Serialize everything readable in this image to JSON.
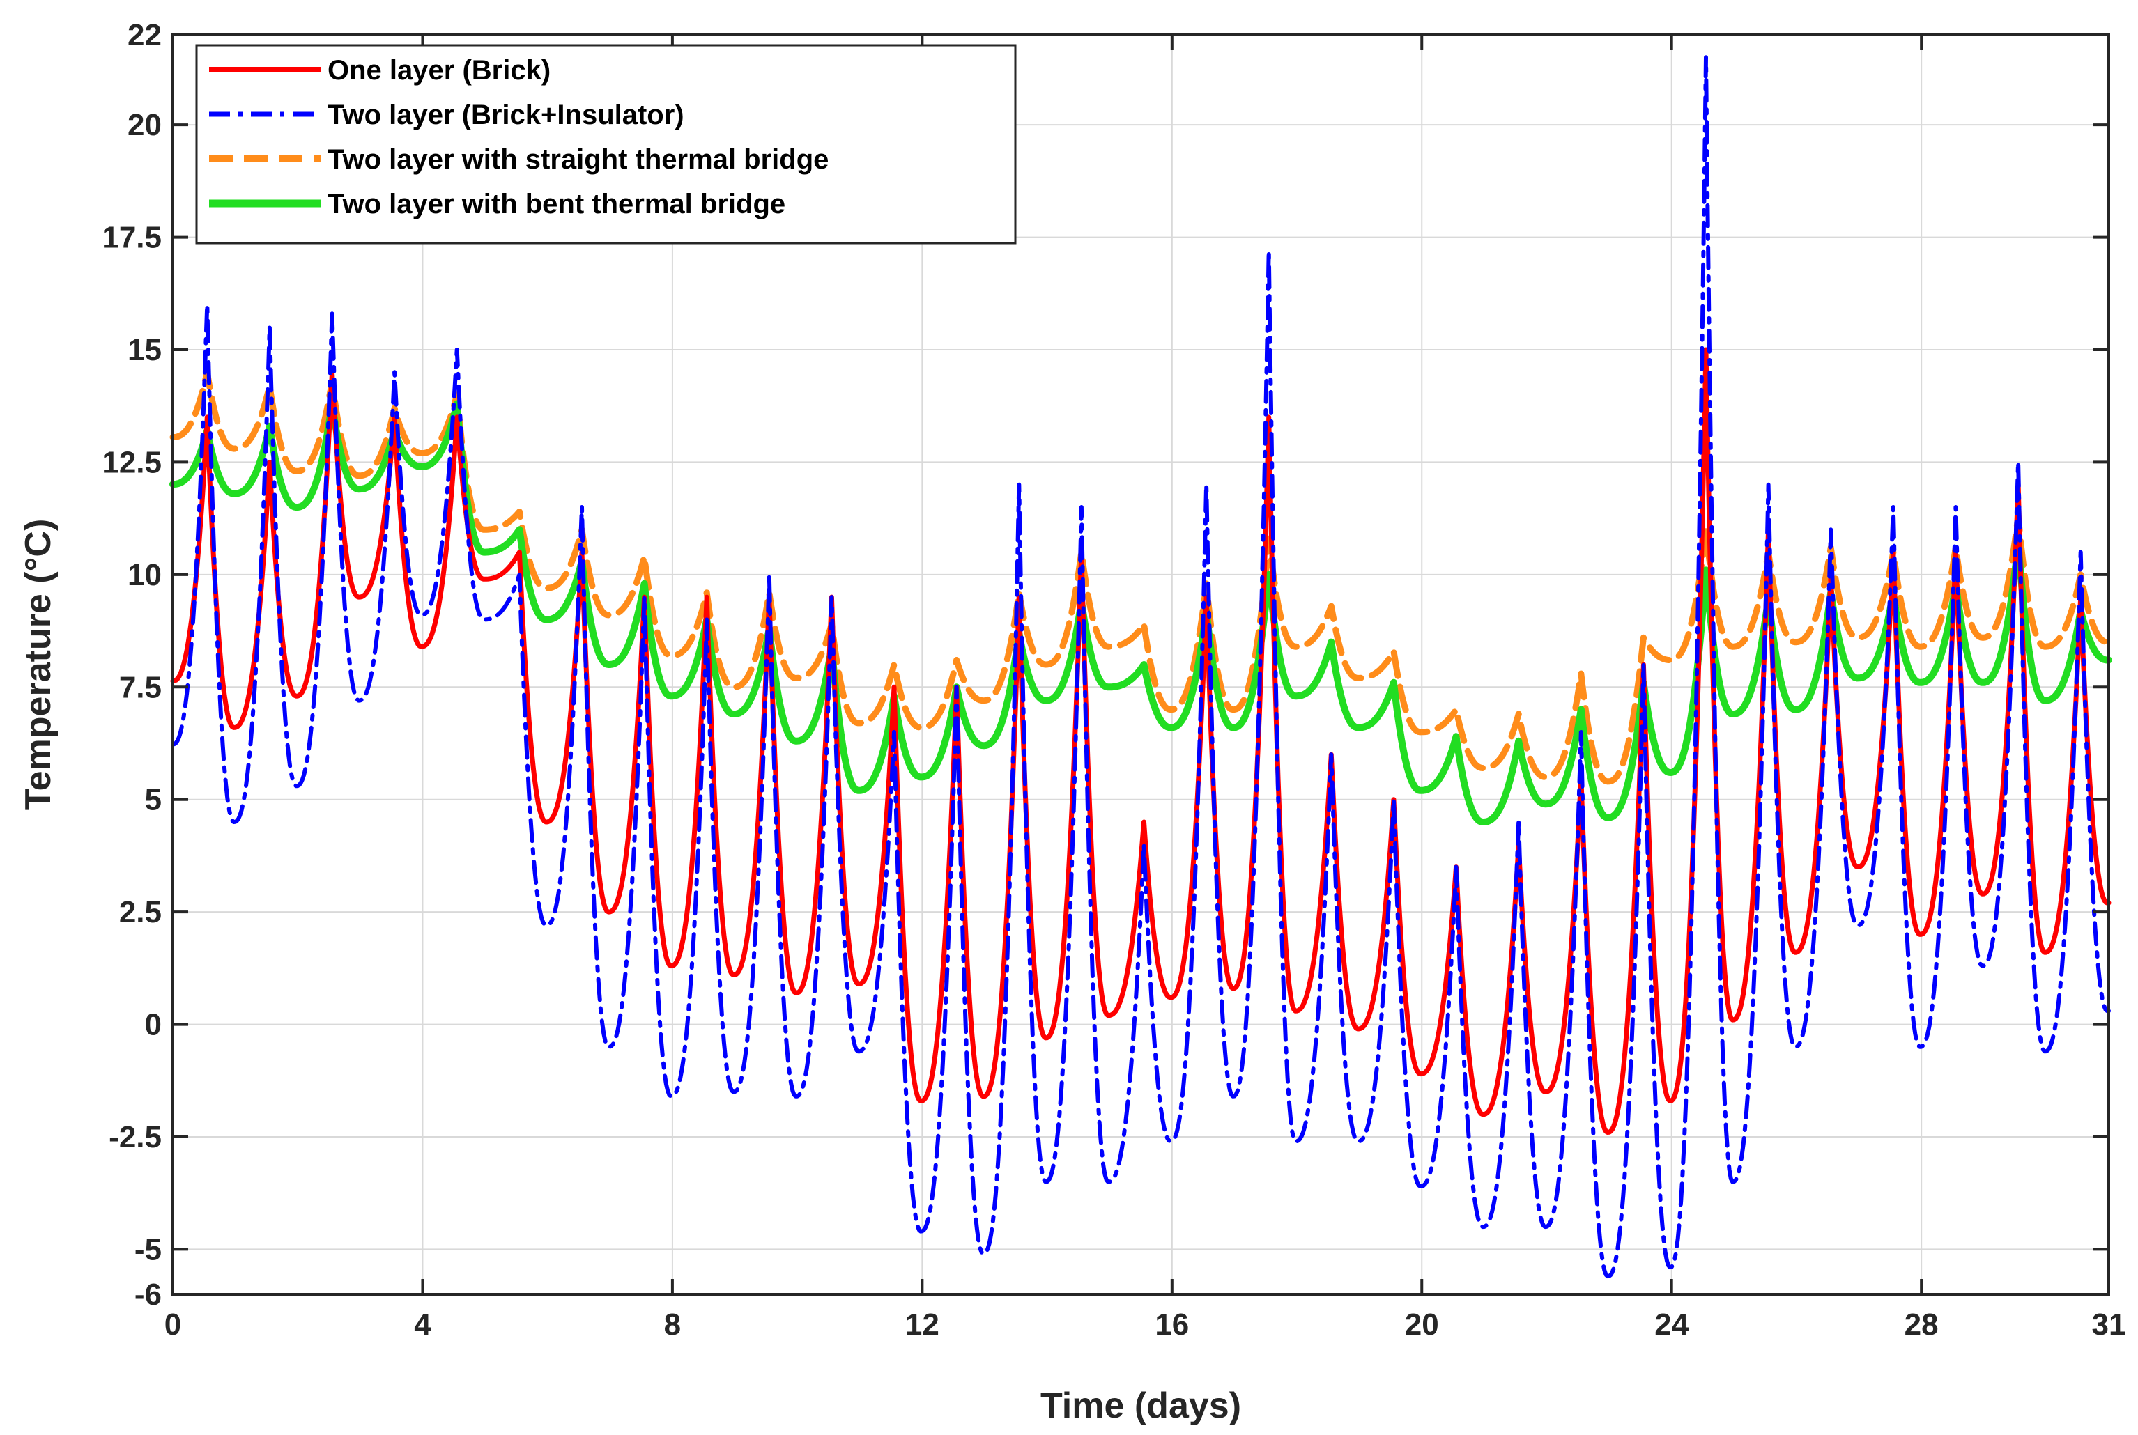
{
  "chart_data": {
    "type": "line",
    "title": "",
    "xlabel": "Time (days)",
    "ylabel": "Temperature (°C)",
    "xlim": [
      0,
      31
    ],
    "ylim": [
      -6,
      22
    ],
    "grid": true,
    "legend_position": "top-left",
    "x_ticks": [
      0,
      4,
      8,
      12,
      16,
      20,
      24,
      28,
      31
    ],
    "x_tick_labels": [
      "0",
      "4",
      "8",
      "12",
      "16",
      "20",
      "24",
      "28",
      "31"
    ],
    "y_ticks": [
      -6,
      -5,
      -2.5,
      0,
      2.5,
      5,
      7.5,
      10,
      12.5,
      15,
      17.5,
      20,
      22
    ],
    "y_tick_labels": [
      "-6",
      "-5",
      "-2.5",
      "0",
      "2.5",
      "5",
      "7.5",
      "10",
      "12.5",
      "15",
      "17.5",
      "20",
      "22"
    ],
    "series": [
      {
        "name": "One layer (Brick)",
        "color": "#ff0000",
        "dash": "solid",
        "peaks": [
          13.5,
          12.5,
          14.5,
          13.5,
          13.5,
          10.5,
          10.5,
          9.5,
          9.5,
          9.5,
          9.5,
          7.5,
          7.5,
          9.5,
          10.5,
          4.5,
          9.5,
          13.5,
          6.0,
          5.0,
          3.5,
          4.0,
          5.5,
          8.0,
          15.0,
          11.0,
          10.0,
          10.5,
          10.5,
          12.0,
          9.5
        ],
        "troughs": [
          6.6,
          7.3,
          9.5,
          8.4,
          9.9,
          4.5,
          2.5,
          1.3,
          1.1,
          0.7,
          0.9,
          -1.7,
          -1.6,
          -0.3,
          0.2,
          0.6,
          0.8,
          0.3,
          -0.1,
          -1.1,
          -2.0,
          -1.5,
          -2.4,
          -1.7,
          0.1,
          1.6,
          3.5,
          2.0,
          2.9,
          1.6,
          2.7
        ]
      },
      {
        "name": "Two layer (Brick+Insulator)",
        "color": "#0000ff",
        "dash": "dash-dot",
        "peaks": [
          16.0,
          15.5,
          15.8,
          14.5,
          15.0,
          10.0,
          11.5,
          9.5,
          9.0,
          10.0,
          9.5,
          6.5,
          7.5,
          12.0,
          11.5,
          4.0,
          12.0,
          17.2,
          6.0,
          5.0,
          3.5,
          4.5,
          6.5,
          8.0,
          21.5,
          12.0,
          11.0,
          11.5,
          11.5,
          12.5,
          10.5
        ],
        "troughs": [
          4.5,
          5.3,
          7.2,
          9.1,
          9.0,
          2.2,
          -0.5,
          -1.6,
          -1.5,
          -1.6,
          -0.6,
          -4.6,
          -5.1,
          -3.5,
          -3.5,
          -2.6,
          -1.6,
          -2.6,
          -2.6,
          -3.6,
          -4.5,
          -4.5,
          -5.6,
          -5.4,
          -3.5,
          -0.5,
          2.2,
          -0.5,
          1.3,
          -0.6,
          0.3
        ]
      },
      {
        "name": "Two layer with straight thermal bridge",
        "color": "#ff8c1a",
        "dash": "dashed",
        "peaks": [
          14.5,
          14.2,
          14.3,
          13.7,
          14.0,
          11.4,
          11.0,
          10.4,
          9.6,
          9.6,
          8.9,
          8.0,
          8.1,
          9.6,
          10.5,
          8.9,
          9.8,
          10.8,
          9.3,
          8.3,
          7.0,
          6.9,
          7.8,
          8.6,
          11.0,
          10.5,
          10.6,
          10.5,
          10.6,
          11.3,
          10.0
        ],
        "troughs": [
          12.8,
          12.3,
          12.2,
          12.7,
          11.0,
          9.7,
          9.1,
          8.2,
          7.5,
          7.7,
          6.7,
          6.6,
          7.2,
          8.0,
          8.4,
          7.0,
          7.0,
          8.4,
          7.7,
          6.5,
          5.7,
          5.5,
          5.4,
          8.1,
          8.4,
          8.5,
          8.6,
          8.4,
          8.6,
          8.4,
          8.5
        ]
      },
      {
        "name": "Two layer with bent thermal bridge",
        "color": "#22dd22",
        "dash": "solid",
        "peaks": [
          13.2,
          13.3,
          13.8,
          13.2,
          13.8,
          11.0,
          10.3,
          9.8,
          9.0,
          8.8,
          8.4,
          7.3,
          7.5,
          8.7,
          9.4,
          8.0,
          9.2,
          10.0,
          8.5,
          7.6,
          6.4,
          6.3,
          7.0,
          7.6,
          10.1,
          9.5,
          9.6,
          9.6,
          9.8,
          10.7,
          9.2
        ],
        "troughs": [
          11.8,
          11.5,
          11.9,
          12.4,
          10.5,
          9.0,
          8.0,
          7.3,
          6.9,
          6.3,
          5.2,
          5.5,
          6.2,
          7.2,
          7.5,
          6.6,
          6.6,
          7.3,
          6.6,
          5.2,
          4.5,
          4.9,
          4.6,
          5.6,
          6.9,
          7.0,
          7.7,
          7.6,
          7.6,
          7.2,
          8.1
        ]
      }
    ]
  }
}
